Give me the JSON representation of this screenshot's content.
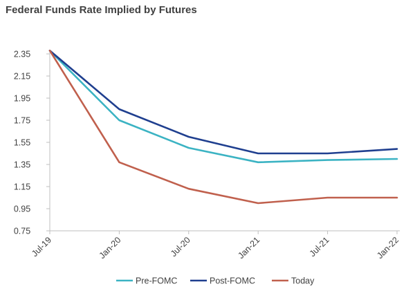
{
  "chart_data": {
    "type": "line",
    "title": "Federal Funds Rate Implied by Futures",
    "xlabel": "",
    "ylabel": "",
    "categories": [
      "Jul-19",
      "Jan-20",
      "Jul-20",
      "Jan-21",
      "Jul-21",
      "Jan-22"
    ],
    "yticks": [
      "2.35",
      "2.15",
      "1.95",
      "1.75",
      "1.55",
      "1.35",
      "1.15",
      "0.95",
      "0.75"
    ],
    "ylim": [
      0.75,
      2.35
    ],
    "grid": false,
    "legend_position": "bottom",
    "series": [
      {
        "name": "Pre-FOMC",
        "color": "#3bb3c3",
        "values": [
          2.38,
          1.75,
          1.5,
          1.37,
          1.39,
          1.4
        ]
      },
      {
        "name": "Post-FOMC",
        "color": "#1f3f8f",
        "values": [
          2.38,
          1.85,
          1.6,
          1.45,
          1.45,
          1.49
        ]
      },
      {
        "name": "Today",
        "color": "#c0604d",
        "values": [
          2.38,
          1.37,
          1.13,
          1.0,
          1.05,
          1.05
        ]
      }
    ]
  }
}
